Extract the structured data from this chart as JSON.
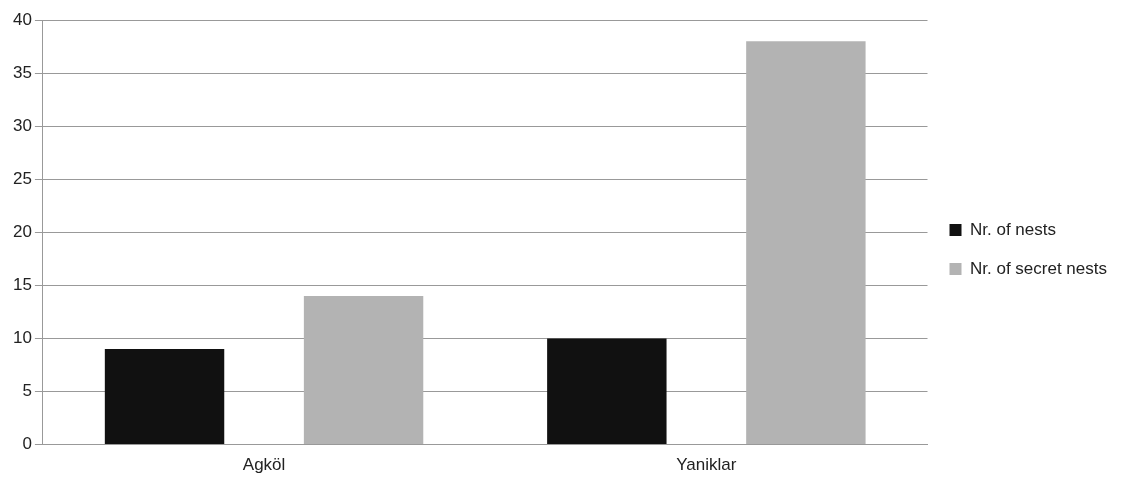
{
  "chart_data": {
    "type": "bar",
    "categories": [
      "Agköl",
      "Yaniklar"
    ],
    "series": [
      {
        "name": "Nr. of nests",
        "color": "#111111",
        "values": [
          9,
          10
        ]
      },
      {
        "name": "Nr. of secret nests",
        "color": "#b3b3b3",
        "values": [
          14,
          38
        ]
      }
    ],
    "ylim": [
      0,
      40
    ],
    "yticks": [
      0,
      5,
      10,
      15,
      20,
      25,
      30,
      35,
      40
    ],
    "grid": "y",
    "legend": "right"
  }
}
